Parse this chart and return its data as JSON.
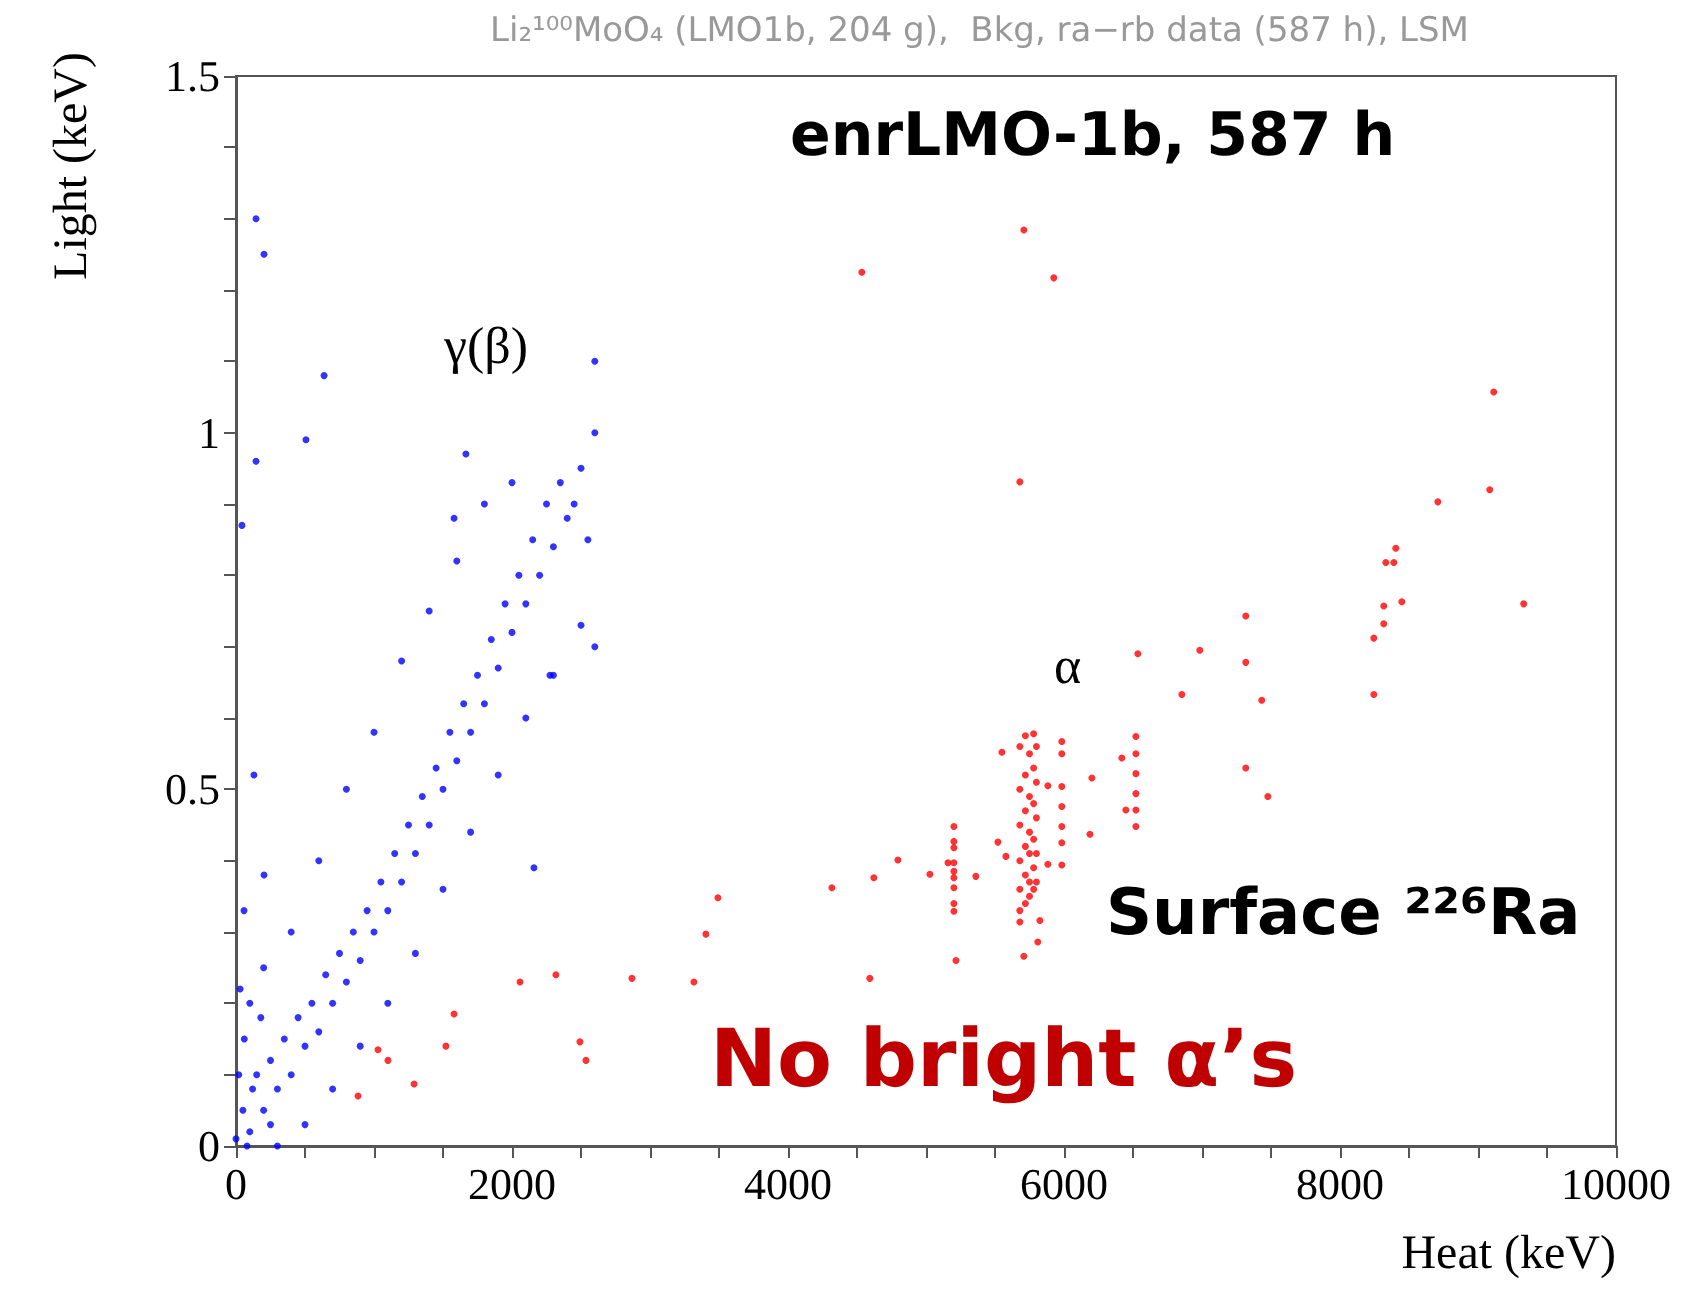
{
  "chart_data": {
    "type": "scatter",
    "title": "Li₂¹⁰⁰MoO₄ (LMO1b, 204 g),  Bkg, ra−rb data (587 h), LSM",
    "subtitle": "enrLMO-1b, 587 h",
    "xlabel": "Heat (keV)",
    "ylabel": "Light (keV)",
    "xlim": [
      0,
      10000
    ],
    "ylim": [
      0,
      1.5
    ],
    "xticks": [
      0,
      {
        "value": 500,
        "label": null
      },
      {
        "value": 1000,
        "label": null
      },
      {
        "value": 1500,
        "label": null
      },
      2000,
      {
        "value": 2500,
        "label": null
      },
      {
        "value": 3000,
        "label": null
      },
      {
        "value": 3500,
        "label": null
      },
      4000,
      {
        "value": 4500,
        "label": null
      },
      {
        "value": 5000,
        "label": null
      },
      {
        "value": 5500,
        "label": null
      },
      6000,
      {
        "value": 6500,
        "label": null
      },
      {
        "value": 7000,
        "label": null
      },
      {
        "value": 7500,
        "label": null
      },
      8000,
      {
        "value": 8500,
        "label": null
      },
      {
        "value": 9000,
        "label": null
      },
      {
        "value": 9500,
        "label": null
      },
      10000
    ],
    "yticks": [
      0,
      {
        "value": 0.1,
        "label": null
      },
      {
        "value": 0.2,
        "label": null
      },
      {
        "value": 0.3,
        "label": null
      },
      {
        "value": 0.4,
        "label": null
      },
      0.5,
      {
        "value": 0.6,
        "label": null
      },
      {
        "value": 0.7,
        "label": null
      },
      {
        "value": 0.8,
        "label": null
      },
      {
        "value": 0.9,
        "label": null
      },
      1,
      {
        "value": 1.1,
        "label": null
      },
      {
        "value": 1.2,
        "label": null
      },
      {
        "value": 1.3,
        "label": null
      },
      {
        "value": 1.4,
        "label": null
      },
      1.5
    ],
    "grid": false,
    "marker": "circle",
    "annotations": [
      "γ(β)",
      "α",
      "Surface ²²⁶Ra",
      "No bright α’s"
    ],
    "series": [
      {
        "color": "#0000ff",
        "x": [
          0,
          50,
          100,
          150,
          200,
          250,
          300,
          350,
          400,
          450,
          500,
          550,
          600,
          650,
          700,
          750,
          800,
          850,
          900,
          950,
          1000,
          1050,
          1100,
          1150,
          1200,
          1250,
          1300,
          1350,
          1400,
          1450,
          1500,
          1550,
          1600,
          1650,
          1700,
          1750,
          1800,
          1850,
          1900,
          1950,
          2000,
          2050,
          2100,
          2150,
          2200,
          2250,
          2300,
          2350,
          2400,
          2450,
          2500,
          2550,
          2600,
          2600,
          2600,
          100,
          200,
          400,
          600,
          800,
          1000,
          1200,
          1400,
          1600,
          1800,
          2000,
          300,
          500,
          700,
          900,
          1100,
          1300,
          1500,
          1700,
          1900,
          2100,
          2300,
          2500,
          145,
          203,
          638,
          507,
          145,
          43,
          1666,
          1580,
          130,
          203,
          2159,
          58,
          2275,
          20,
          60,
          120,
          180,
          250,
          30,
          80
        ],
        "values": [
          0.01,
          0.05,
          0.02,
          0.1,
          0.05,
          0.12,
          0.08,
          0.15,
          0.1,
          0.18,
          0.14,
          0.2,
          0.16,
          0.24,
          0.2,
          0.27,
          0.23,
          0.3,
          0.26,
          0.33,
          0.3,
          0.37,
          0.33,
          0.41,
          0.37,
          0.45,
          0.41,
          0.49,
          0.45,
          0.53,
          0.5,
          0.58,
          0.54,
          0.62,
          0.58,
          0.66,
          0.62,
          0.71,
          0.67,
          0.76,
          0.72,
          0.8,
          0.76,
          0.85,
          0.8,
          0.9,
          0.84,
          0.93,
          0.88,
          0.9,
          0.95,
          0.85,
          1.0,
          1.1,
          0.7,
          0.2,
          0.25,
          0.3,
          0.4,
          0.5,
          0.58,
          0.68,
          0.75,
          0.82,
          0.9,
          0.93,
          0.0,
          0.03,
          0.08,
          0.14,
          0.2,
          0.27,
          0.36,
          0.44,
          0.52,
          0.6,
          0.66,
          0.73,
          1.3,
          1.25,
          1.08,
          0.99,
          0.96,
          0.87,
          0.97,
          0.88,
          0.52,
          0.38,
          0.39,
          0.33,
          0.66,
          0.1,
          0.15,
          0.08,
          0.18,
          0.03,
          0.22,
          0.0
        ]
      },
      {
        "color": "#ff0000",
        "x": [
          2058,
          2318,
          2869,
          3318,
          1580,
          1521,
          1029,
          1101,
          1290,
          884,
          2492,
          2536,
          5709,
          4535,
          5926,
          5680,
          9114,
          9085,
          8709,
          9331,
          8404,
          8332,
          8390,
          8448,
          8317,
          8317,
          8245,
          8245,
          7317,
          7317,
          7433,
          7317,
          7477,
          6984,
          6854,
          6535,
          6521,
          6521,
          6521,
          6521,
          6521,
          6521,
          6419,
          6448,
          5984,
          5984,
          5984,
          5984,
          5984,
          5984,
          5984,
          6202,
          6188,
          5709,
          5810,
          5680,
          5825,
          5550,
          5521,
          5579,
          5883,
          5883,
          5202,
          5202,
          5202,
          5202,
          5202,
          5202,
          5202,
          5202,
          5202,
          5159,
          5361,
          5217,
          5028,
          4796,
          4622,
          4318,
          4593,
          3492,
          3405,
          5680,
          5680,
          5680,
          5680,
          5680,
          5680,
          5720,
          5720,
          5720,
          5720,
          5720,
          5720,
          5750,
          5750,
          5750,
          5750,
          5750,
          5750,
          5780,
          5780,
          5780,
          5780,
          5780,
          5780,
          5800,
          5800,
          5800,
          5800,
          5800
        ],
        "values": [
          0.23,
          0.24,
          0.235,
          0.23,
          0.185,
          0.14,
          0.135,
          0.12,
          0.087,
          0.07,
          0.146,
          0.12,
          1.284,
          1.225,
          1.217,
          0.931,
          1.057,
          0.92,
          0.903,
          0.76,
          0.838,
          0.818,
          0.818,
          0.763,
          0.757,
          0.732,
          0.712,
          0.633,
          0.743,
          0.678,
          0.625,
          0.53,
          0.49,
          0.695,
          0.633,
          0.69,
          0.574,
          0.55,
          0.522,
          0.494,
          0.471,
          0.448,
          0.544,
          0.471,
          0.567,
          0.55,
          0.504,
          0.476,
          0.448,
          0.425,
          0.394,
          0.516,
          0.437,
          0.266,
          0.286,
          0.314,
          0.316,
          0.552,
          0.426,
          0.406,
          0.505,
          0.395,
          0.448,
          0.427,
          0.418,
          0.397,
          0.385,
          0.376,
          0.362,
          0.34,
          0.329,
          0.397,
          0.378,
          0.26,
          0.381,
          0.401,
          0.376,
          0.362,
          0.235,
          0.348,
          0.297,
          0.56,
          0.5,
          0.45,
          0.4,
          0.36,
          0.33,
          0.575,
          0.52,
          0.47,
          0.42,
          0.38,
          0.34,
          0.55,
          0.49,
          0.44,
          0.41,
          0.37,
          0.35,
          0.578,
          0.53,
          0.48,
          0.43,
          0.39,
          0.36,
          0.56,
          0.51,
          0.46,
          0.41,
          0.37
        ]
      }
    ]
  }
}
